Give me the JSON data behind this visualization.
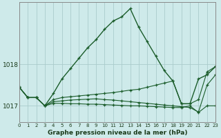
{
  "xlabel": "Graphe pression niveau de la mer (hPa)",
  "background_color": "#ceeaea",
  "grid_color": "#aacccc",
  "line_color": "#1a5c2a",
  "x_ticks": [
    0,
    1,
    2,
    3,
    4,
    5,
    6,
    7,
    8,
    9,
    10,
    11,
    12,
    13,
    14,
    15,
    16,
    17,
    18,
    19,
    20,
    21,
    22,
    23
  ],
  "yticks": [
    1017,
    1018
  ],
  "ylim": [
    1016.6,
    1019.5
  ],
  "xlim": [
    0,
    23
  ],
  "line1_y": [
    1017.45,
    1017.2,
    1017.2,
    1017.0,
    1017.3,
    1017.65,
    1017.9,
    1018.15,
    1018.4,
    1018.6,
    1018.85,
    1019.05,
    1019.15,
    1019.35,
    1018.9,
    1018.55,
    1018.2,
    1017.85,
    1017.6,
    1017.05,
    1017.05,
    1017.65,
    1017.75,
    1017.95
  ],
  "line2_y": [
    1017.45,
    1017.2,
    1017.2,
    1017.0,
    1017.15,
    1017.2,
    1017.22,
    1017.24,
    1017.26,
    1017.28,
    1017.3,
    1017.32,
    1017.35,
    1017.38,
    1017.4,
    1017.45,
    1017.5,
    1017.55,
    1017.6,
    1017.05,
    1017.05,
    1017.15,
    1017.82,
    1017.95
  ],
  "line3_y": [
    1017.45,
    1017.2,
    1017.2,
    1017.0,
    1017.1,
    1017.12,
    1017.14,
    1017.15,
    1017.16,
    1017.17,
    1017.15,
    1017.14,
    1017.12,
    1017.1,
    1017.08,
    1017.06,
    1017.04,
    1017.02,
    1017.0,
    1016.98,
    1016.96,
    1016.85,
    1017.5,
    1017.75
  ],
  "line4_y": [
    1017.45,
    1017.2,
    1017.2,
    1017.0,
    1017.06,
    1017.06,
    1017.05,
    1017.05,
    1017.04,
    1017.04,
    1017.03,
    1017.02,
    1017.01,
    1017.0,
    1017.0,
    1016.99,
    1016.98,
    1016.97,
    1016.96,
    1016.96,
    1017.0,
    1016.84,
    1017.0,
    1017.0
  ]
}
